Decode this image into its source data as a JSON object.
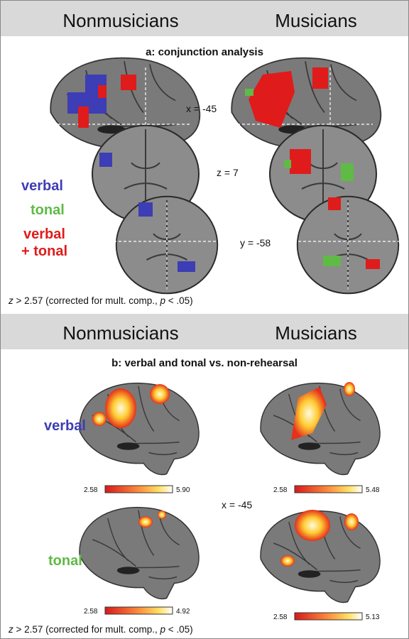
{
  "panel_a": {
    "headers": [
      "Nonmusicians",
      "Musicians"
    ],
    "title": "a: conjunction analysis",
    "slice_labels": [
      "x = -45",
      "z = 7",
      "y = -58"
    ],
    "legend": {
      "verbal": "verbal",
      "tonal": "tonal",
      "both": [
        "verbal",
        "+ tonal"
      ]
    },
    "footnote": [
      "z",
      " > 2.57 (corrected for mult. comp., ",
      "p",
      " < .05)"
    ]
  },
  "panel_b": {
    "headers": [
      "Nonmusicians",
      "Musicians"
    ],
    "title": "b: verbal and tonal vs. non-rehearsal",
    "row_labels": [
      "verbal",
      "tonal"
    ],
    "slice_label": "x = -45",
    "colorbars": [
      [
        "2.58",
        "5.90"
      ],
      [
        "2.58",
        "5.48"
      ],
      [
        "2.58",
        "4.92"
      ],
      [
        "2.58",
        "5.13"
      ]
    ],
    "footnote": [
      "z",
      " > 2.57 (corrected for mult. comp., ",
      "p",
      " < .05)"
    ]
  }
}
